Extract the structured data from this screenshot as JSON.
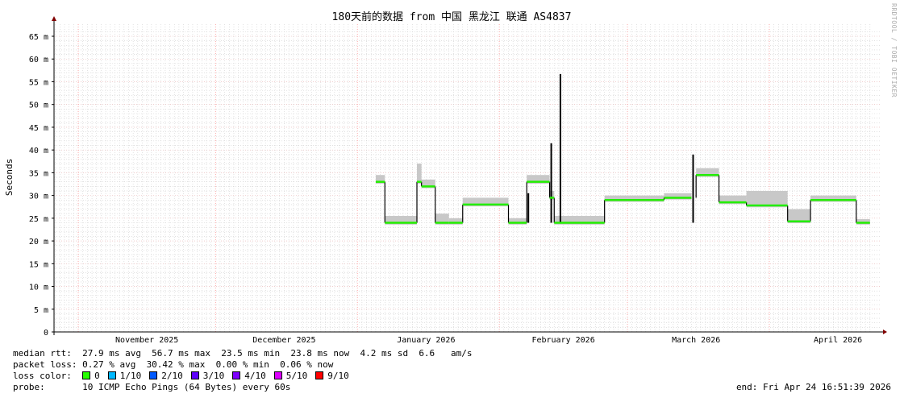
{
  "chart_data": {
    "type": "line",
    "title": "180天前的数据 from  中国 黑龙江 联通 AS4837",
    "ylabel": "Seconds",
    "ylim": [
      0,
      0.068
    ],
    "yticks": [
      {
        "v": 0,
        "label": "0"
      },
      {
        "v": 5,
        "label": "5 m"
      },
      {
        "v": 10,
        "label": "10 m"
      },
      {
        "v": 15,
        "label": "15 m"
      },
      {
        "v": 20,
        "label": "20 m"
      },
      {
        "v": 25,
        "label": "25 m"
      },
      {
        "v": 30,
        "label": "30 m"
      },
      {
        "v": 35,
        "label": "35 m"
      },
      {
        "v": 40,
        "label": "40 m"
      },
      {
        "v": 45,
        "label": "45 m"
      },
      {
        "v": 50,
        "label": "50 m"
      },
      {
        "v": 55,
        "label": "55 m"
      },
      {
        "v": 60,
        "label": "60 m"
      },
      {
        "v": 65,
        "label": "65 m"
      }
    ],
    "xrange": [
      "2025-10-26",
      "2026-04-24"
    ],
    "xticks": [
      {
        "date": "2025-11-16",
        "label": "November 2025"
      },
      {
        "date": "2025-12-16",
        "label": "December 2025"
      },
      {
        "date": "2026-01-16",
        "label": "January 2026"
      },
      {
        "date": "2026-02-15",
        "label": "February 2026"
      },
      {
        "date": "2026-03-16",
        "label": "March 2026"
      },
      {
        "date": "2026-04-16",
        "label": "April 2026"
      }
    ],
    "grid": true,
    "unit": "ms",
    "median_segments": [
      {
        "start": "2026-01-05",
        "end": "2026-01-07",
        "median": 33,
        "smoke_max": 34.5
      },
      {
        "start": "2026-01-07",
        "end": "2026-01-14",
        "median": 24,
        "smoke_max": 25.5
      },
      {
        "start": "2026-01-14",
        "end": "2026-01-15",
        "median": 33,
        "smoke_max": 37
      },
      {
        "start": "2026-01-15",
        "end": "2026-01-18",
        "median": 32,
        "smoke_max": 33.5
      },
      {
        "start": "2026-01-18",
        "end": "2026-01-21",
        "median": 24,
        "smoke_max": 26
      },
      {
        "start": "2026-01-21",
        "end": "2026-01-24",
        "median": 24,
        "smoke_max": 25
      },
      {
        "start": "2026-01-24",
        "end": "2026-02-03",
        "median": 28,
        "smoke_max": 29.5
      },
      {
        "start": "2026-02-03",
        "end": "2026-02-07",
        "median": 24,
        "smoke_max": 25
      },
      {
        "start": "2026-02-07",
        "end": "2026-02-12",
        "median": 33,
        "smoke_max": 34.5
      },
      {
        "start": "2026-02-12",
        "end": "2026-02-13",
        "median": 29.5,
        "smoke_max": 31
      },
      {
        "start": "2026-02-13",
        "end": "2026-02-24",
        "median": 24,
        "smoke_max": 25.5
      },
      {
        "start": "2026-02-24",
        "end": "2026-03-09",
        "median": 29,
        "smoke_max": 30
      },
      {
        "start": "2026-03-09",
        "end": "2026-03-15",
        "median": 29.5,
        "smoke_max": 30.5
      },
      {
        "start": "2026-03-16",
        "end": "2026-03-21",
        "median": 34.5,
        "smoke_max": 36
      },
      {
        "start": "2026-03-21",
        "end": "2026-03-27",
        "median": 28.5,
        "smoke_max": 30
      },
      {
        "start": "2026-03-27",
        "end": "2026-04-05",
        "median": 27.8,
        "smoke_max": 31
      },
      {
        "start": "2026-04-05",
        "end": "2026-04-10",
        "median": 24.3,
        "smoke_max": 27
      },
      {
        "start": "2026-04-10",
        "end": "2026-04-20",
        "median": 29,
        "smoke_max": 30
      },
      {
        "start": "2026-04-20",
        "end": "2026-04-23",
        "median": 24,
        "smoke_max": 24.8
      }
    ],
    "spikes": [
      {
        "date": "2026-02-07",
        "value": 30.5
      },
      {
        "date": "2026-02-12",
        "value": 41.5
      },
      {
        "date": "2026-02-14",
        "value": 56.7
      },
      {
        "date": "2026-03-15",
        "value": 39
      }
    ],
    "colors": {
      "median": "#22ee00",
      "smoke": "#c8c8c8",
      "line": "#000000",
      "grid": "#d0d0d0",
      "month_grid": "#ff9999"
    }
  },
  "watermark": "RRDTOOL / TOBI OETIKER",
  "legend": {
    "median_rtt": "median rtt:  27.9 ms avg  56.7 ms max  23.5 ms min  23.8 ms now  4.2 ms sd  6.6   am/s",
    "packet_loss": "packet loss: 0.27 % avg  30.42 % max  0.00 % min  0.06 % now",
    "loss_color_label": "loss color:  ",
    "loss_colors": [
      {
        "label": "0",
        "color": "#26ff00"
      },
      {
        "label": "1/10",
        "color": "#00b8ff"
      },
      {
        "label": "2/10",
        "color": "#0059ff"
      },
      {
        "label": "3/10",
        "color": "#5e00ff"
      },
      {
        "label": "4/10",
        "color": "#7e00ff"
      },
      {
        "label": "5/10",
        "color": "#dd00ff"
      },
      {
        "label": "9/10",
        "color": "#ff0000"
      }
    ],
    "probe": "probe:       10 ICMP Echo Pings (64 Bytes) every 60s",
    "end": "end: Fri Apr 24 16:51:39 2026"
  }
}
